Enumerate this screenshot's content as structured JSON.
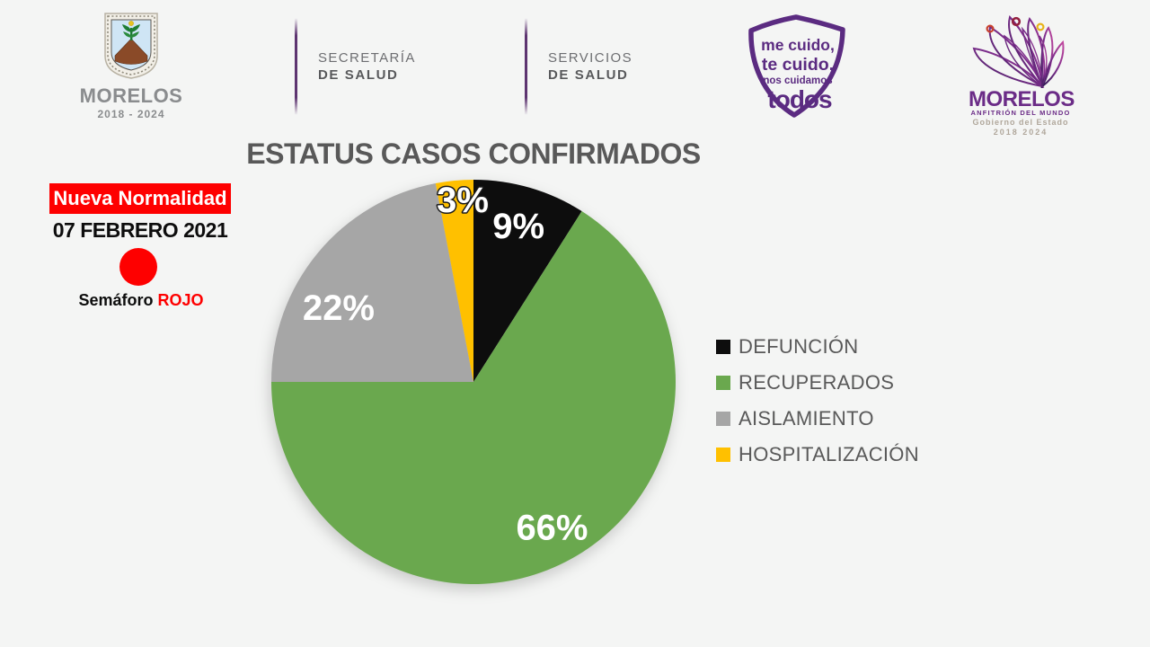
{
  "header": {
    "coat_of_arms": {
      "title": "MORELOS",
      "subtitle": "2018 - 2024"
    },
    "secretaria": {
      "line1": "SECRETARÍA",
      "line2": "DE SALUD"
    },
    "servicios": {
      "line1": "SERVICIOS",
      "line2": "DE SALUD"
    },
    "badge": {
      "line1": "me cuido,",
      "line2": "te cuido,",
      "line3": "nos cuidamos",
      "line4": "todos"
    },
    "state_logo": {
      "title": "MORELOS",
      "subtitle": "ANFITRIÓN DEL MUNDO",
      "line3": "Gobierno del Estado",
      "line4": "2018 2024"
    }
  },
  "status_panel": {
    "banner_text": "Nueva Normalidad",
    "date": "07 FEBRERO 2021",
    "semaforo_label": "Semáforo",
    "semaforo_status": "ROJO",
    "accent_red": "#fe0000"
  },
  "chart_data": {
    "type": "pie",
    "title": "ESTATUS CASOS CONFIRMADOS",
    "start_angle_deg": 0,
    "direction": "clockwise",
    "legend_position": "right",
    "data_label_color": "#ffffff",
    "slices": [
      {
        "label": "DEFUNCIÓN",
        "value": 9,
        "pct_label": "9%",
        "color": "#0d0d0d"
      },
      {
        "label": "RECUPERADOS",
        "value": 66,
        "pct_label": "66%",
        "color": "#6aa84e"
      },
      {
        "label": "AISLAMIENTO",
        "value": 22,
        "pct_label": "22%",
        "color": "#a6a6a6"
      },
      {
        "label": "HOSPITALIZACIÓN",
        "value": 3,
        "pct_label": "3%",
        "color": "#ffc000"
      }
    ]
  }
}
